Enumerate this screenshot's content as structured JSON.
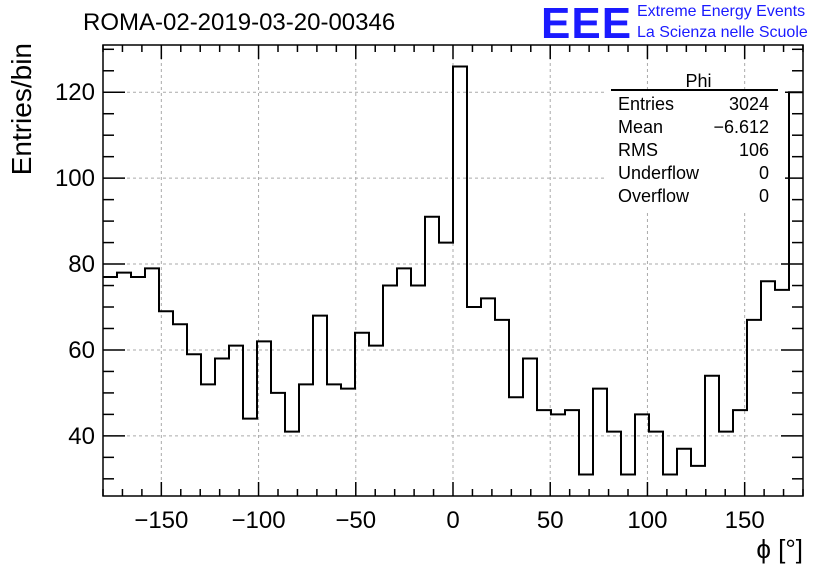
{
  "chart_data": {
    "type": "histogram",
    "title": "ROMA-02-2019-03-20-00346",
    "xlabel": "ϕ [°]",
    "ylabel": "Entries/bin",
    "xlim": [
      -180,
      180
    ],
    "ylim": [
      26,
      131
    ],
    "x_ticks": [
      -150,
      -100,
      -50,
      0,
      50,
      100,
      150
    ],
    "x_tick_labels": [
      "−150",
      "−100",
      "−50",
      "0",
      "50",
      "100",
      "150"
    ],
    "y_ticks": [
      40,
      60,
      80,
      100,
      120
    ],
    "y_tick_labels": [
      "40",
      "60",
      "80",
      "100",
      "120"
    ],
    "grid": true,
    "bin_width": 7.2,
    "values": [
      77,
      78,
      77,
      79,
      69,
      66,
      59,
      52,
      58,
      61,
      44,
      62,
      50,
      41,
      52,
      68,
      52,
      51,
      64,
      61,
      75,
      79,
      75,
      91,
      85,
      126,
      70,
      72,
      67,
      49,
      58,
      46,
      45,
      46,
      31,
      51,
      41,
      31,
      45,
      41,
      31,
      37,
      33,
      54,
      41,
      46,
      67,
      76,
      74,
      120
    ],
    "stats": {
      "name": "Phi",
      "rows": [
        {
          "label": "Entries",
          "value": "3024"
        },
        {
          "label": "Mean",
          "value": "−6.612"
        },
        {
          "label": "RMS",
          "value": "106"
        },
        {
          "label": "Underflow",
          "value": "0"
        },
        {
          "label": "Overflow",
          "value": "0"
        }
      ]
    },
    "legend_position": "top-right"
  },
  "logo": {
    "mark": "EEE",
    "line1": "Extreme Energy Events",
    "line2": "La Scienza nelle Scuole"
  }
}
